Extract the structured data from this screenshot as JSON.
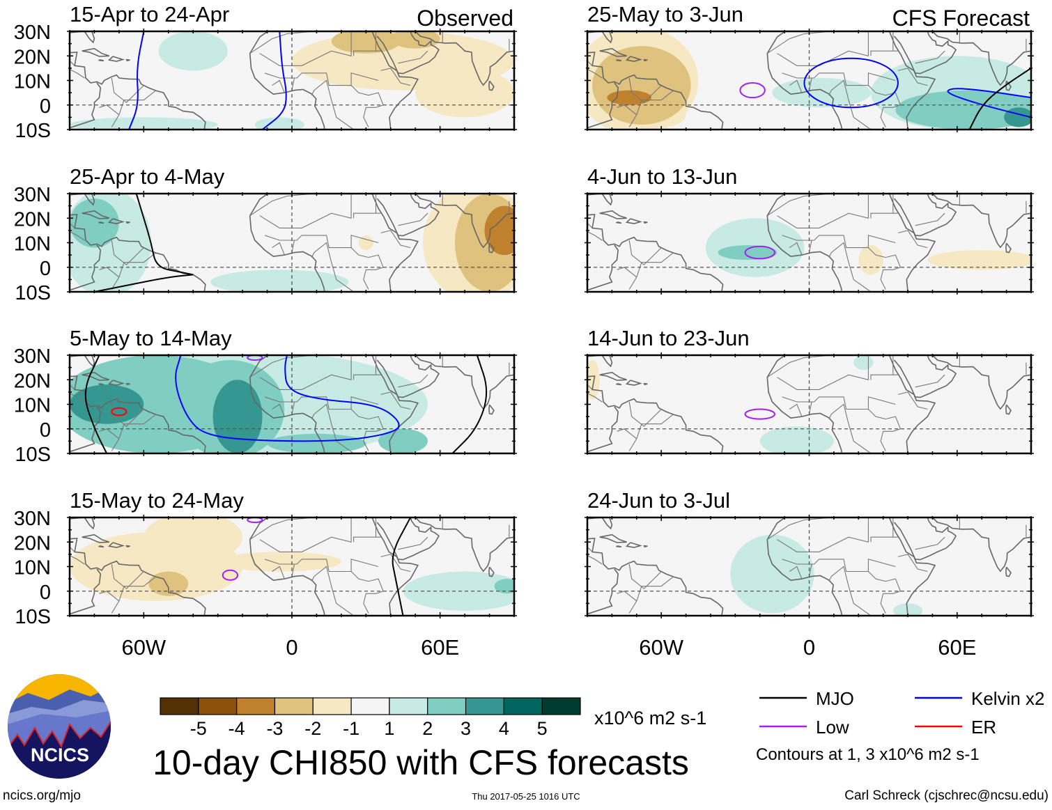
{
  "title": "10-day CHI850 with CFS forecasts",
  "footer": {
    "left": "ncics.org/mjo",
    "center": "Thu 2017-05-25 1016 UTC",
    "right": "Carl Schreck (cjschrec@ncsu.edu)"
  },
  "logo_text": "NCICS",
  "column_labels": {
    "left": "Observed",
    "right": "CFS Forecast"
  },
  "lat_labels": [
    "30N",
    "20N",
    "10N",
    "0",
    "10S"
  ],
  "lon_labels": [
    "60W",
    "0",
    "60E"
  ],
  "colorbar": {
    "unit": "x10^6 m2 s-1",
    "colors": [
      "#543005",
      "#8c510a",
      "#bf812d",
      "#dfc27d",
      "#f6e8c3",
      "#f5f5f5",
      "#c7eae5",
      "#80cdc1",
      "#35978f",
      "#01665e",
      "#003c30"
    ],
    "labels": [
      "-5",
      "-4",
      "-3",
      "-2",
      "-1",
      "1",
      "2",
      "3",
      "4",
      "5"
    ]
  },
  "legend": {
    "items": [
      {
        "label": "MJO",
        "color": "#000000"
      },
      {
        "label": "Kelvin x2",
        "color": "#0000ff"
      },
      {
        "label": "Low",
        "color": "#a020f0"
      },
      {
        "label": "ER",
        "color": "#ff0000"
      }
    ],
    "note": "Contours at 1, 3 x10^6 m2 s-1"
  },
  "chart_data": {
    "type": "heatmap",
    "lon_range": [
      -90,
      90
    ],
    "lat_range": [
      -10,
      30
    ],
    "panels": [
      {
        "title": "15-Apr to 24-Apr",
        "column": "left",
        "row": 0,
        "blobs": [
          [
            -40,
            22,
            14,
            8,
            1
          ],
          [
            -60,
            -8,
            30,
            3,
            1
          ],
          [
            45,
            18,
            45,
            12,
            -1
          ],
          [
            70,
            5,
            20,
            10,
            -1
          ],
          [
            -5,
            -8,
            10,
            3,
            1
          ],
          [
            30,
            26,
            14,
            5,
            -2
          ],
          [
            50,
            27,
            10,
            4,
            -2
          ]
        ],
        "contours": [
          {
            "type": "Kelvin x2",
            "points": [
              [
                -60,
                30
              ],
              [
                -63,
                15
              ],
              [
                -62,
                0
              ],
              [
                -66,
                -10
              ]
            ]
          },
          {
            "type": "Kelvin x2",
            "points": [
              [
                -5,
                30
              ],
              [
                -4,
                15
              ],
              [
                -2,
                5
              ],
              [
                -3,
                -3
              ],
              [
                -12,
                -10
              ]
            ]
          }
        ]
      },
      {
        "title": "25-Apr to 4-May",
        "column": "left",
        "row": 1,
        "blobs": [
          [
            -75,
            10,
            18,
            22,
            1
          ],
          [
            -80,
            18,
            10,
            10,
            2
          ],
          [
            -5,
            -6,
            28,
            5,
            1
          ],
          [
            75,
            10,
            22,
            24,
            -1
          ],
          [
            80,
            10,
            14,
            20,
            -2
          ],
          [
            86,
            15,
            8,
            10,
            -3
          ],
          [
            30,
            10,
            3,
            3,
            -1
          ]
        ],
        "contours": [
          {
            "type": "MJO",
            "points": [
              [
                -63,
                30
              ],
              [
                -60,
                20
              ],
              [
                -57,
                10
              ],
              [
                -55,
                0
              ],
              [
                -45,
                -2
              ],
              [
                -40,
                -3
              ]
            ]
          },
          {
            "type": "MJO",
            "points": [
              [
                -80,
                -10
              ],
              [
                -65,
                -7
              ],
              [
                -50,
                -4
              ],
              [
                -40,
                -3
              ]
            ]
          }
        ]
      },
      {
        "title": "5-May to 14-May",
        "column": "left",
        "row": 2,
        "blobs": [
          [
            -20,
            10,
            75,
            22,
            1
          ],
          [
            -55,
            10,
            40,
            20,
            2
          ],
          [
            -25,
            8,
            22,
            20,
            2
          ],
          [
            -75,
            10,
            15,
            8,
            3
          ],
          [
            -22,
            5,
            10,
            15,
            3
          ],
          [
            10,
            -6,
            20,
            4,
            2
          ],
          [
            45,
            -5,
            10,
            5,
            2
          ]
        ],
        "contours": [
          {
            "type": "ER",
            "ellipse": [
              -70,
              7,
              3,
              1.5
            ]
          },
          {
            "type": "Kelvin x2",
            "points": [
              [
                -45,
                30
              ],
              [
                -48,
                20
              ],
              [
                -43,
                5
              ],
              [
                -35,
                -3
              ],
              [
                -10,
                -5
              ],
              [
                20,
                -5
              ],
              [
                40,
                -2
              ],
              [
                45,
                2
              ],
              [
                35,
                10
              ],
              [
                10,
                12
              ],
              [
                -2,
                16
              ],
              [
                -3,
                25
              ],
              [
                -2,
                30
              ]
            ]
          },
          {
            "type": "MJO",
            "points": [
              [
                -78,
                30
              ],
              [
                -85,
                15
              ],
              [
                -80,
                0
              ],
              [
                -75,
                -10
              ]
            ]
          },
          {
            "type": "MJO",
            "points": [
              [
                75,
                30
              ],
              [
                80,
                15
              ],
              [
                75,
                0
              ],
              [
                65,
                -10
              ]
            ]
          },
          {
            "type": "Low",
            "ellipse": [
              -15,
              29,
              3,
              1
            ]
          }
        ]
      },
      {
        "title": "15-May to 24-May",
        "column": "left",
        "row": 3,
        "blobs": [
          [
            -55,
            10,
            35,
            14,
            -1
          ],
          [
            -40,
            22,
            20,
            10,
            -1
          ],
          [
            -5,
            12,
            25,
            4,
            -1
          ],
          [
            -50,
            3,
            8,
            5,
            -2
          ],
          [
            70,
            0,
            25,
            8,
            1
          ],
          [
            87,
            2,
            5,
            3,
            2
          ]
        ],
        "contours": [
          {
            "type": "Low",
            "ellipse": [
              -25,
              6.5,
              3,
              2
            ]
          },
          {
            "type": "MJO",
            "points": [
              [
                48,
                30
              ],
              [
                40,
                15
              ],
              [
                42,
                5
              ],
              [
                45,
                -10
              ]
            ]
          },
          {
            "type": "Low",
            "ellipse": [
              -15,
              29,
              3,
              1
            ]
          }
        ]
      },
      {
        "title": "25-May to 3-Jun",
        "column": "right",
        "row": 0,
        "blobs": [
          [
            -70,
            10,
            25,
            22,
            -1
          ],
          [
            -68,
            8,
            20,
            16,
            -2
          ],
          [
            -73,
            3,
            9,
            3,
            -3
          ],
          [
            -60,
            -4,
            10,
            5,
            -1
          ],
          [
            60,
            5,
            35,
            15,
            1
          ],
          [
            5,
            5,
            20,
            6,
            1
          ],
          [
            65,
            -2,
            30,
            8,
            2
          ],
          [
            85,
            -5,
            6,
            4,
            3
          ]
        ],
        "contours": [
          {
            "type": "Low",
            "ellipse": [
              -23,
              6,
              5,
              3
            ]
          },
          {
            "type": "Kelvin x2",
            "ellipse": [
              17,
              9,
              19,
              10
            ]
          },
          {
            "type": "Kelvin x2",
            "points": [
              [
                90,
                -5
              ],
              [
                70,
                0
              ],
              [
                55,
                5
              ],
              [
                58,
                7
              ],
              [
                70,
                6
              ],
              [
                90,
                3
              ]
            ]
          },
          {
            "type": "MJO",
            "points": [
              [
                90,
                15
              ],
              [
                78,
                7
              ],
              [
                70,
                0
              ],
              [
                65,
                -10
              ]
            ]
          }
        ]
      },
      {
        "title": "4-Jun to 13-Jun",
        "column": "right",
        "row": 1,
        "blobs": [
          [
            -22,
            8,
            20,
            12,
            1
          ],
          [
            -25,
            6,
            12,
            3,
            2
          ],
          [
            25,
            3,
            5,
            6,
            -1
          ],
          [
            70,
            3,
            22,
            4,
            -1
          ]
        ],
        "contours": [
          {
            "type": "Low",
            "ellipse": [
              -20,
              6,
              6,
              2.5
            ]
          }
        ]
      },
      {
        "title": "14-Jun to 23-Jun",
        "column": "right",
        "row": 2,
        "blobs": [
          [
            -88,
            20,
            3,
            8,
            -1
          ],
          [
            -5,
            -5,
            15,
            6,
            1
          ],
          [
            22,
            27,
            4,
            3,
            1
          ]
        ],
        "contours": [
          {
            "type": "Low",
            "ellipse": [
              -20,
              6,
              6,
              2
            ]
          }
        ]
      },
      {
        "title": "24-Jun to 3-Jul",
        "column": "right",
        "row": 3,
        "blobs": [
          [
            -15,
            7,
            17,
            16,
            1
          ],
          [
            40,
            -8,
            6,
            3,
            1
          ]
        ],
        "contours": []
      }
    ]
  }
}
